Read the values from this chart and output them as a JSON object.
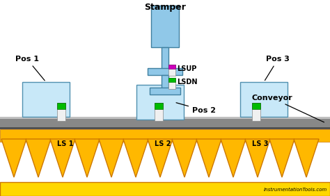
{
  "title": "Stamper",
  "bg_color": "#ffffff",
  "gold_color": "#FFB800",
  "gold_dark": "#CC7700",
  "gold_base": "#FFD700",
  "gray_belt": "#808080",
  "gray_belt_top": "#b0b0b0",
  "gray_belt_dark": "#555555",
  "lt_blue": "#c8e8f8",
  "blue_edge": "#5090b0",
  "stamper_blue": "#90c8e8",
  "stamper_edge": "#4080a0",
  "sensor_white": "#f0f0f0",
  "sensor_green": "#00bb00",
  "sensor_magenta": "#bb00bb",
  "black": "#000000",
  "watermark": "InstrumentationTools.com",
  "title_text": "Stamper",
  "conveyor_label": "Conveyor",
  "pos1_label": "Pos 1",
  "pos2_label": "Pos 2",
  "pos3_label": "Pos 3",
  "ls1_label": "LS 1",
  "ls2_label": "LS 2",
  "ls3_label": "LS 3",
  "lsup_label": "LSUP",
  "lsdn_label": "LSDN"
}
